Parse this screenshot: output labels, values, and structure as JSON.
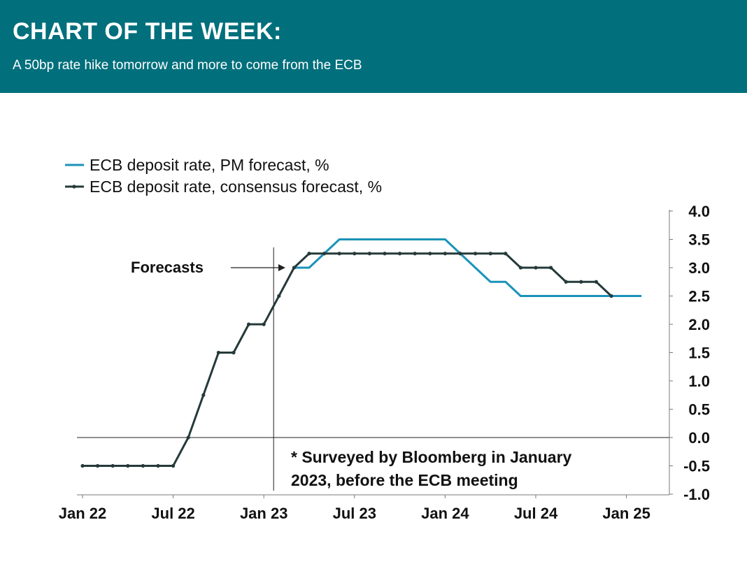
{
  "header": {
    "title": "CHART OF THE WEEK:",
    "subtitle": "A 50bp rate hike tomorrow and more to come from the ECB"
  },
  "colors": {
    "header_bg": "#016f7c",
    "pm_series": "#1a93b8",
    "consensus_series": "#253a3a"
  },
  "chart_data": {
    "type": "line",
    "title": "",
    "xlabel": "",
    "ylabel": "",
    "x_ticks": [
      "Jan 22",
      "Jul 22",
      "Jan 23",
      "Jul 23",
      "Jan 24",
      "Jul 24",
      "Jan 25"
    ],
    "x_range": [
      "2022-01",
      "2025-02"
    ],
    "y_ticks": [
      "4.0",
      "3.5",
      "3.0",
      "2.5",
      "2.0",
      "1.5",
      "1.0",
      "0.5",
      "0.0",
      "-0.5",
      "-1.0"
    ],
    "ylim": [
      -1.0,
      4.0
    ],
    "y_axis_side": "right",
    "grid": false,
    "legend_position": "top-left",
    "zero_line": true,
    "forecast_start": "2023-01",
    "annotations": {
      "forecasts_label": "Forecasts",
      "footnote_line1": "* Surveyed by Bloomberg in January",
      "footnote_line2": "2023, before the ECB meeting"
    },
    "series": [
      {
        "name": "ECB deposit rate, PM forecast, %",
        "color": "#1a93b8",
        "markers": false,
        "points": [
          [
            "2023-03",
            3.0
          ],
          [
            "2023-04",
            3.0
          ],
          [
            "2023-05",
            3.25
          ],
          [
            "2023-06",
            3.5
          ],
          [
            "2023-07",
            3.5
          ],
          [
            "2023-08",
            3.5
          ],
          [
            "2023-09",
            3.5
          ],
          [
            "2023-10",
            3.5
          ],
          [
            "2023-11",
            3.5
          ],
          [
            "2023-12",
            3.5
          ],
          [
            "2024-01",
            3.5
          ],
          [
            "2024-02",
            3.25
          ],
          [
            "2024-03",
            3.0
          ],
          [
            "2024-04",
            2.75
          ],
          [
            "2024-05",
            2.75
          ],
          [
            "2024-06",
            2.5
          ],
          [
            "2024-07",
            2.5
          ],
          [
            "2024-08",
            2.5
          ],
          [
            "2024-09",
            2.5
          ],
          [
            "2024-10",
            2.5
          ],
          [
            "2024-11",
            2.5
          ],
          [
            "2024-12",
            2.5
          ],
          [
            "2025-01",
            2.5
          ],
          [
            "2025-02",
            2.5
          ]
        ]
      },
      {
        "name": "ECB deposit rate, consensus forecast, %",
        "color": "#253a3a",
        "markers": true,
        "points": [
          [
            "2022-01",
            -0.5
          ],
          [
            "2022-02",
            -0.5
          ],
          [
            "2022-03",
            -0.5
          ],
          [
            "2022-04",
            -0.5
          ],
          [
            "2022-05",
            -0.5
          ],
          [
            "2022-06",
            -0.5
          ],
          [
            "2022-07",
            -0.5
          ],
          [
            "2022-08",
            0.0
          ],
          [
            "2022-09",
            0.75
          ],
          [
            "2022-10",
            1.5
          ],
          [
            "2022-11",
            1.5
          ],
          [
            "2022-12",
            2.0
          ],
          [
            "2023-01",
            2.0
          ],
          [
            "2023-02",
            2.5
          ],
          [
            "2023-03",
            3.0
          ],
          [
            "2023-04",
            3.25
          ],
          [
            "2023-05",
            3.25
          ],
          [
            "2023-06",
            3.25
          ],
          [
            "2023-07",
            3.25
          ],
          [
            "2023-08",
            3.25
          ],
          [
            "2023-09",
            3.25
          ],
          [
            "2023-10",
            3.25
          ],
          [
            "2023-11",
            3.25
          ],
          [
            "2023-12",
            3.25
          ],
          [
            "2024-01",
            3.25
          ],
          [
            "2024-02",
            3.25
          ],
          [
            "2024-03",
            3.25
          ],
          [
            "2024-04",
            3.25
          ],
          [
            "2024-05",
            3.25
          ],
          [
            "2024-06",
            3.0
          ],
          [
            "2024-07",
            3.0
          ],
          [
            "2024-08",
            3.0
          ],
          [
            "2024-09",
            2.75
          ],
          [
            "2024-10",
            2.75
          ],
          [
            "2024-11",
            2.75
          ],
          [
            "2024-12",
            2.5
          ]
        ]
      }
    ]
  }
}
